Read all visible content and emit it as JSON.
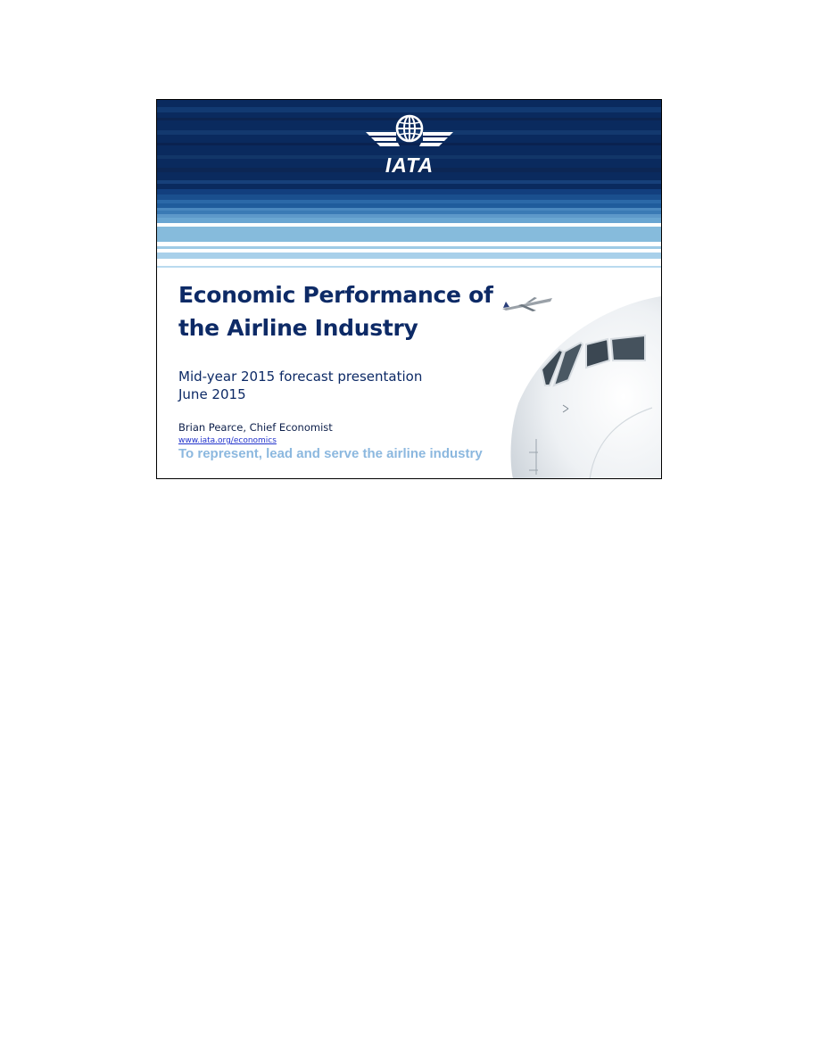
{
  "slide": {
    "logo": {
      "text": "IATA",
      "icon": "iata-globe-wings-logo"
    },
    "title": "Economic Performance of the Airline Industry",
    "subtitle_line1": "Mid-year 2015 forecast presentation",
    "subtitle_line2": "June 2015",
    "author": "Brian Pearce, Chief Economist",
    "link": "www.iata.org/economics",
    "tagline": "To represent, lead and serve the airline industry",
    "icons": {
      "airplane_small": "airplane-icon",
      "aircraft_nose": "aircraft-nose-image"
    }
  },
  "colors": {
    "navy": "#0b2a5c",
    "title_blue": "#0d2a66",
    "light_blue": "#86bbdc",
    "tagline_blue": "#8cb8df",
    "link_blue": "#2233cc"
  }
}
